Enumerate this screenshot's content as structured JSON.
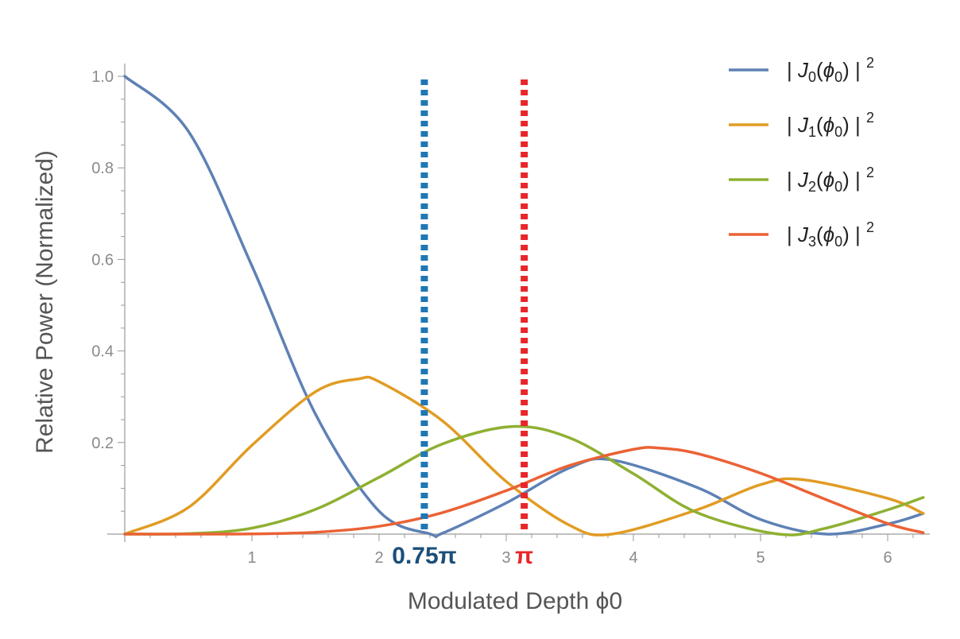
{
  "chart_data": {
    "type": "line",
    "xlabel": "Modulated Depth ϕ0",
    "ylabel": "Relative  Power (Normalized)",
    "xlim": [
      0,
      6.3
    ],
    "ylim": [
      0,
      1.0
    ],
    "x_ticks": [
      1,
      2,
      3,
      4,
      5,
      6
    ],
    "x_tick_labels": [
      "1",
      "2",
      "3",
      "4",
      "5",
      "6"
    ],
    "y_ticks": [
      0.2,
      0.4,
      0.6,
      0.8,
      1.0
    ],
    "y_tick_labels": [
      "0.2",
      "0.4",
      "0.6",
      "0.8",
      "1.0"
    ],
    "grid": false,
    "legend_position": "top-right",
    "series": [
      {
        "name": "|J0(ϕ0)|2",
        "sub": "0",
        "order": 0,
        "color": "#5e81b5",
        "x": [
          0,
          0.5,
          1.0,
          1.5,
          2.0,
          2.405,
          2.5,
          3.0,
          3.5,
          3.83,
          4.5,
          5.0,
          5.52,
          6.0,
          6.28
        ],
        "y": [
          1.0,
          0.88,
          0.586,
          0.262,
          0.05,
          0.0,
          0.002,
          0.068,
          0.145,
          0.162,
          0.102,
          0.032,
          0.0,
          0.022,
          0.045
        ]
      },
      {
        "name": "|J1(ϕ0)|2",
        "sub": "1",
        "order": 1,
        "color": "#e19c24",
        "x": [
          0,
          0.5,
          1.0,
          1.5,
          1.84,
          2.0,
          2.5,
          3.0,
          3.5,
          3.83,
          4.5,
          5.0,
          5.33,
          6.0,
          6.28
        ],
        "y": [
          0.0,
          0.058,
          0.194,
          0.311,
          0.339,
          0.333,
          0.247,
          0.115,
          0.019,
          0.0,
          0.053,
          0.108,
          0.119,
          0.078,
          0.045
        ]
      },
      {
        "name": "|J2(ϕ0)|2",
        "sub": "2",
        "order": 2,
        "color": "#8fb032",
        "x": [
          0,
          0.5,
          1.0,
          1.5,
          2.0,
          2.5,
          3.05,
          3.5,
          4.0,
          4.5,
          5.14,
          5.5,
          6.0,
          6.28
        ],
        "y": [
          0.0,
          0.001,
          0.013,
          0.054,
          0.124,
          0.197,
          0.235,
          0.21,
          0.132,
          0.047,
          0.0,
          0.012,
          0.053,
          0.08
        ]
      },
      {
        "name": "|J3(ϕ0)|2",
        "sub": "3",
        "order": 3,
        "color": "#eb6235",
        "x": [
          0,
          0.5,
          1.0,
          1.5,
          2.0,
          2.5,
          3.0,
          3.5,
          4.0,
          4.2,
          4.5,
          5.0,
          5.5,
          6.0,
          6.28
        ],
        "y": [
          0.0,
          0.0,
          0.0004,
          0.004,
          0.017,
          0.047,
          0.095,
          0.15,
          0.185,
          0.188,
          0.176,
          0.133,
          0.077,
          0.023,
          0.003
        ]
      }
    ],
    "annotations": [
      {
        "label": "0.75π",
        "x": 2.356,
        "color": "#1f77b4",
        "label_color": "#1b4f7a",
        "style": "dotted"
      },
      {
        "label": "π",
        "x": 3.1416,
        "color": "#e8262a",
        "label_color": "#e8262a",
        "style": "dotted"
      }
    ]
  }
}
